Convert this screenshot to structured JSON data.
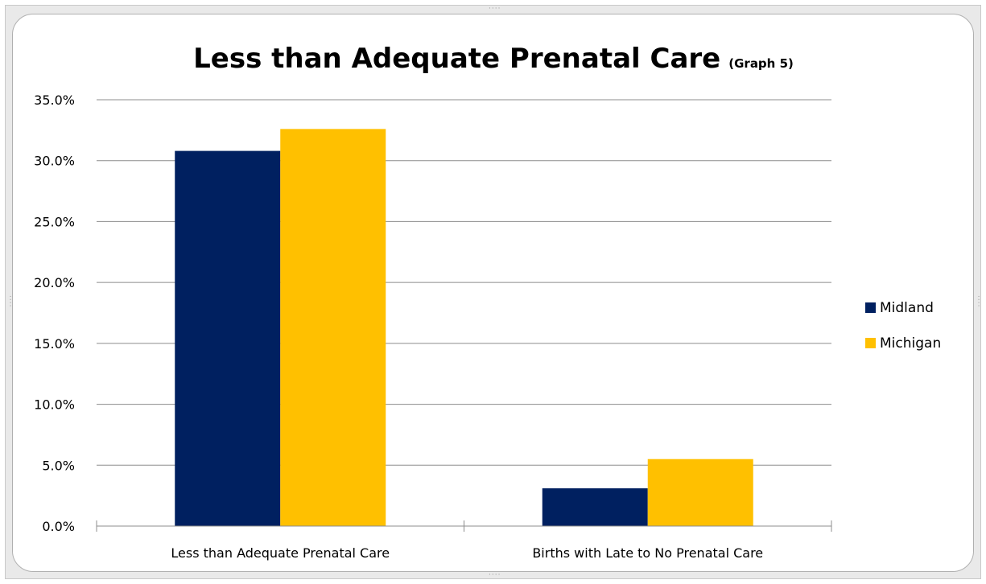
{
  "chart_data": {
    "type": "bar",
    "title": "Less than Adequate Prenatal Care",
    "subtitle": "(Graph 5)",
    "xlabel": "",
    "ylabel": "",
    "categories": [
      "Less than Adequate Prenatal Care",
      "Births with Late to No Prenatal Care"
    ],
    "series": [
      {
        "name": "Midland",
        "color": "#002060",
        "values": [
          0.308,
          0.031
        ]
      },
      {
        "name": "Michigan",
        "color": "#FFC000",
        "values": [
          0.326,
          0.055
        ]
      }
    ],
    "ylim": [
      0,
      0.35
    ],
    "yticks": [
      0,
      0.05,
      0.1,
      0.15,
      0.2,
      0.25,
      0.3,
      0.35
    ],
    "ytick_labels": [
      "0.0%",
      "5.0%",
      "10.0%",
      "15.0%",
      "20.0%",
      "25.0%",
      "30.0%",
      "35.0%"
    ],
    "grid": true,
    "legend_position": "right"
  }
}
